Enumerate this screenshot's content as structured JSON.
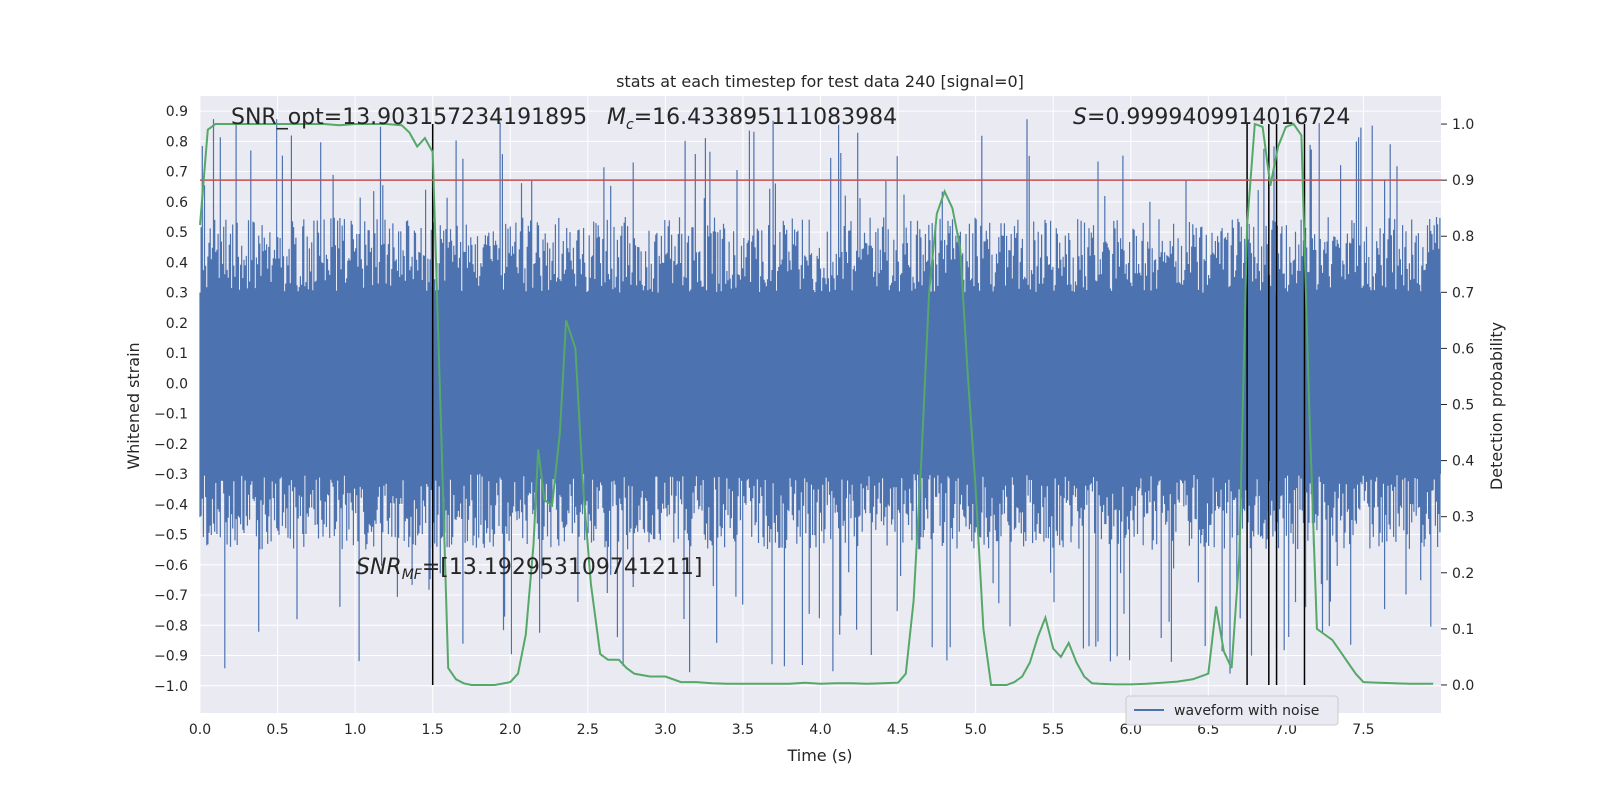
{
  "chart_data": {
    "type": "line",
    "title": "stats at each timestep for test data 240 [signal=0]",
    "xlabel": "Time (s)",
    "ylabel": "Whitened strain",
    "ylabel_right": "Detection probability",
    "xlim": [
      0.0,
      8.0
    ],
    "ylim": [
      -1.09,
      0.95
    ],
    "ylim_right": [
      -0.05,
      1.05
    ],
    "x_ticks": [
      0.0,
      0.5,
      1.0,
      1.5,
      2.0,
      2.5,
      3.0,
      3.5,
      4.0,
      4.5,
      5.0,
      5.5,
      6.0,
      6.5,
      7.0,
      7.5
    ],
    "x_tick_labels": [
      "0.0",
      "0.5",
      "1.0",
      "1.5",
      "2.0",
      "2.5",
      "3.0",
      "3.5",
      "4.0",
      "4.5",
      "5.0",
      "5.5",
      "6.0",
      "6.5",
      "7.0",
      "7.5"
    ],
    "y_ticks": [
      0.9,
      0.8,
      0.7,
      0.6,
      0.5,
      0.4,
      0.3,
      0.2,
      0.1,
      0.0,
      -0.1,
      -0.2,
      -0.3,
      -0.4,
      -0.5,
      -0.6,
      -0.7,
      -0.8,
      -0.9,
      -1.0
    ],
    "y_tick_labels": [
      "0.9",
      "0.8",
      "0.7",
      "0.6",
      "0.5",
      "0.4",
      "0.3",
      "0.2",
      "0.1",
      "0.0",
      "−0.1",
      "−0.2",
      "−0.3",
      "−0.4",
      "−0.5",
      "−0.6",
      "−0.7",
      "−0.8",
      "−0.9",
      "−1.0"
    ],
    "y_right_ticks": [
      1.0,
      0.9,
      0.8,
      0.7,
      0.6,
      0.5,
      0.4,
      0.3,
      0.2,
      0.1,
      0.0
    ],
    "y_right_tick_labels": [
      "1.0",
      "0.9",
      "0.8",
      "0.7",
      "0.6",
      "0.5",
      "0.4",
      "0.3",
      "0.2",
      "0.1",
      "0.0"
    ],
    "threshold": 0.9,
    "grid": true,
    "legend": {
      "location": "bottom-right",
      "entries": [
        "waveform with noise"
      ]
    },
    "series": [
      {
        "name": "waveform with noise",
        "axis": "left",
        "color": "#4c72b0",
        "kind": "noise-band",
        "core_band": [
          -0.3,
          0.3
        ],
        "typical_peak": 0.55,
        "max_extent": [
          -0.98,
          0.88
        ]
      },
      {
        "name": "detection probability",
        "axis": "right",
        "color": "#55a868",
        "x": [
          0.0,
          0.05,
          0.1,
          0.15,
          0.2,
          0.3,
          0.4,
          0.5,
          0.6,
          0.7,
          0.8,
          0.9,
          1.0,
          1.1,
          1.2,
          1.3,
          1.35,
          1.4,
          1.45,
          1.5,
          1.55,
          1.6,
          1.65,
          1.7,
          1.75,
          1.8,
          1.9,
          2.0,
          2.05,
          2.1,
          2.15,
          2.18,
          2.22,
          2.27,
          2.32,
          2.36,
          2.42,
          2.47,
          2.52,
          2.58,
          2.63,
          2.7,
          2.75,
          2.8,
          2.9,
          3.0,
          3.1,
          3.2,
          3.3,
          3.4,
          3.5,
          3.6,
          3.7,
          3.8,
          3.9,
          4.0,
          4.1,
          4.2,
          4.3,
          4.4,
          4.5,
          4.55,
          4.6,
          4.65,
          4.7,
          4.75,
          4.8,
          4.85,
          4.9,
          4.95,
          5.0,
          5.05,
          5.1,
          5.15,
          5.2,
          5.25,
          5.3,
          5.35,
          5.4,
          5.45,
          5.5,
          5.55,
          5.6,
          5.65,
          5.7,
          5.75,
          5.8,
          5.9,
          6.0,
          6.1,
          6.2,
          6.3,
          6.4,
          6.5,
          6.55,
          6.6,
          6.65,
          6.7,
          6.75,
          6.8,
          6.85,
          6.9,
          6.95,
          7.0,
          7.05,
          7.1,
          7.15,
          7.2,
          7.25,
          7.3,
          7.35,
          7.4,
          7.45,
          7.5,
          7.6,
          7.7,
          7.8,
          7.9,
          7.95
        ],
        "y": [
          0.82,
          0.99,
          1.0,
          1.0,
          1.0,
          1.0,
          1.0,
          1.0,
          1.0,
          1.0,
          1.0,
          0.998,
          1.0,
          1.0,
          1.0,
          0.998,
          0.985,
          0.96,
          0.975,
          0.95,
          0.5,
          0.03,
          0.01,
          0.003,
          0.0,
          0.0,
          0.0,
          0.005,
          0.02,
          0.09,
          0.25,
          0.42,
          0.33,
          0.32,
          0.45,
          0.65,
          0.6,
          0.35,
          0.18,
          0.055,
          0.045,
          0.045,
          0.03,
          0.02,
          0.015,
          0.015,
          0.005,
          0.005,
          0.003,
          0.002,
          0.002,
          0.002,
          0.002,
          0.002,
          0.004,
          0.002,
          0.003,
          0.003,
          0.002,
          0.003,
          0.004,
          0.02,
          0.15,
          0.4,
          0.7,
          0.84,
          0.88,
          0.85,
          0.78,
          0.55,
          0.35,
          0.1,
          0.0,
          0.0,
          0.0,
          0.005,
          0.015,
          0.04,
          0.085,
          0.12,
          0.065,
          0.05,
          0.075,
          0.04,
          0.015,
          0.003,
          0.002,
          0.001,
          0.001,
          0.002,
          0.004,
          0.006,
          0.01,
          0.02,
          0.14,
          0.06,
          0.03,
          0.23,
          0.82,
          1.0,
          0.995,
          0.89,
          0.96,
          0.995,
          1.0,
          0.98,
          0.5,
          0.1,
          0.09,
          0.08,
          0.06,
          0.04,
          0.02,
          0.005,
          0.004,
          0.003,
          0.002,
          0.002,
          0.002
        ]
      }
    ],
    "threshold_line": {
      "axis": "right",
      "value": 0.9,
      "color": "#c44e52"
    },
    "vertical_markers": {
      "color": "#000000",
      "x": [
        1.5,
        6.75,
        6.89,
        6.94,
        7.12
      ],
      "y_top_right": [
        1.0,
        1.0,
        1.0,
        1.0,
        1.0
      ]
    },
    "annotations": [
      {
        "id": "snr_opt",
        "text": "SNR_opt=13.903157234191895"
      },
      {
        "id": "mc",
        "symbol": "M",
        "subscript": "c",
        "text": "=16.433895111083984"
      },
      {
        "id": "s",
        "symbol": "S",
        "text": "=0.9999409914016724"
      },
      {
        "id": "snr_mf",
        "symbol": "SNR",
        "subscript": "MF",
        "text": "=[13.192953109741211]"
      }
    ]
  }
}
